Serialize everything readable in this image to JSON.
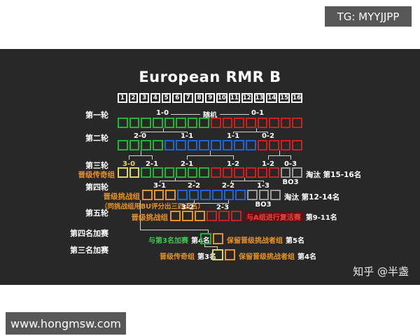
{
  "watermarks": {
    "tg": "TG: MYYJJPP",
    "site": "www.hongmsw.com",
    "zhihu": "知乎 @半盏"
  },
  "title": "European RMR B",
  "colors": {
    "green": "#1eb53a",
    "red": "#cc2020",
    "blue": "#1a66d9",
    "yellow": "#d9d957",
    "orange": "#e8941f",
    "gray": "#999999",
    "panel": "#282828",
    "badge": "#575757"
  },
  "seeds": [
    "1",
    "2",
    "3",
    "4",
    "5",
    "6",
    "7",
    "8",
    "9",
    "10",
    "11",
    "12",
    "13",
    "14",
    "15",
    "16"
  ],
  "rounds": {
    "r1": {
      "label": "第一轮",
      "tags": [
        "1-0",
        "随机",
        "0-1"
      ],
      "groups": [
        {
          "color": "green",
          "count": 8
        },
        {
          "color": "red",
          "count": 8
        }
      ]
    },
    "r2": {
      "label": "第二轮",
      "tags": [
        "2-0",
        "1-1",
        "1-1",
        "0-2"
      ],
      "groups": [
        {
          "color": "green",
          "count": 4
        },
        {
          "color": "blue",
          "count": 8
        },
        {
          "color": "red",
          "count": 4
        }
      ]
    },
    "r3": {
      "label": "第三轮",
      "side": "晋级传奇组",
      "tags": [
        "3-0",
        "2-1",
        "2-1",
        "1-2",
        "1-2",
        "0-3"
      ],
      "groups": [
        {
          "color": "yellow",
          "count": 2
        },
        {
          "color": "green",
          "count": 6
        },
        {
          "color": "red",
          "count": 6
        },
        {
          "color": "gray",
          "count": 2
        }
      ],
      "elim": "淘汰 第15-16名",
      "bo3": "BO3"
    },
    "r4": {
      "label": "第四轮",
      "side": "晋级挑战组",
      "note": "（同挑战组用BU评分出三四五名）",
      "tags": [
        "3-1",
        "2-2",
        "2-2",
        "1-3"
      ],
      "groups": [
        {
          "color": "orange",
          "count": 3
        },
        {
          "color": "blue",
          "count": 6
        },
        {
          "color": "gray",
          "count": 3
        }
      ],
      "elim": "淘汰 第12-14名",
      "bo3": "BO3"
    },
    "r5": {
      "label": "第五轮",
      "side": "晋级挑战组",
      "tags": [
        "3-2",
        "2-3"
      ],
      "groups": [
        {
          "color": "orange",
          "count": 3
        },
        {
          "color": "red",
          "count": 3
        }
      ],
      "relegation": "与A组进行复活赛",
      "relegation_rank": "第9-11名"
    },
    "p4": {
      "label": "第四名加赛",
      "left": "与第3名加赛",
      "left_rank": "第4名",
      "groups": [
        {
          "color": "green",
          "count": 1
        },
        {
          "color": "orange",
          "count": 1
        }
      ],
      "right": "保留晋级挑战者组",
      "right_rank": "第5名"
    },
    "p3": {
      "label": "第三名加赛",
      "left": "晋级传奇组",
      "left_rank": "第3名",
      "groups": [
        {
          "color": "yellow",
          "count": 1
        },
        {
          "color": "orange",
          "count": 1
        }
      ],
      "right": "保留晋级挑战者组",
      "right_rank": "第4名"
    }
  }
}
